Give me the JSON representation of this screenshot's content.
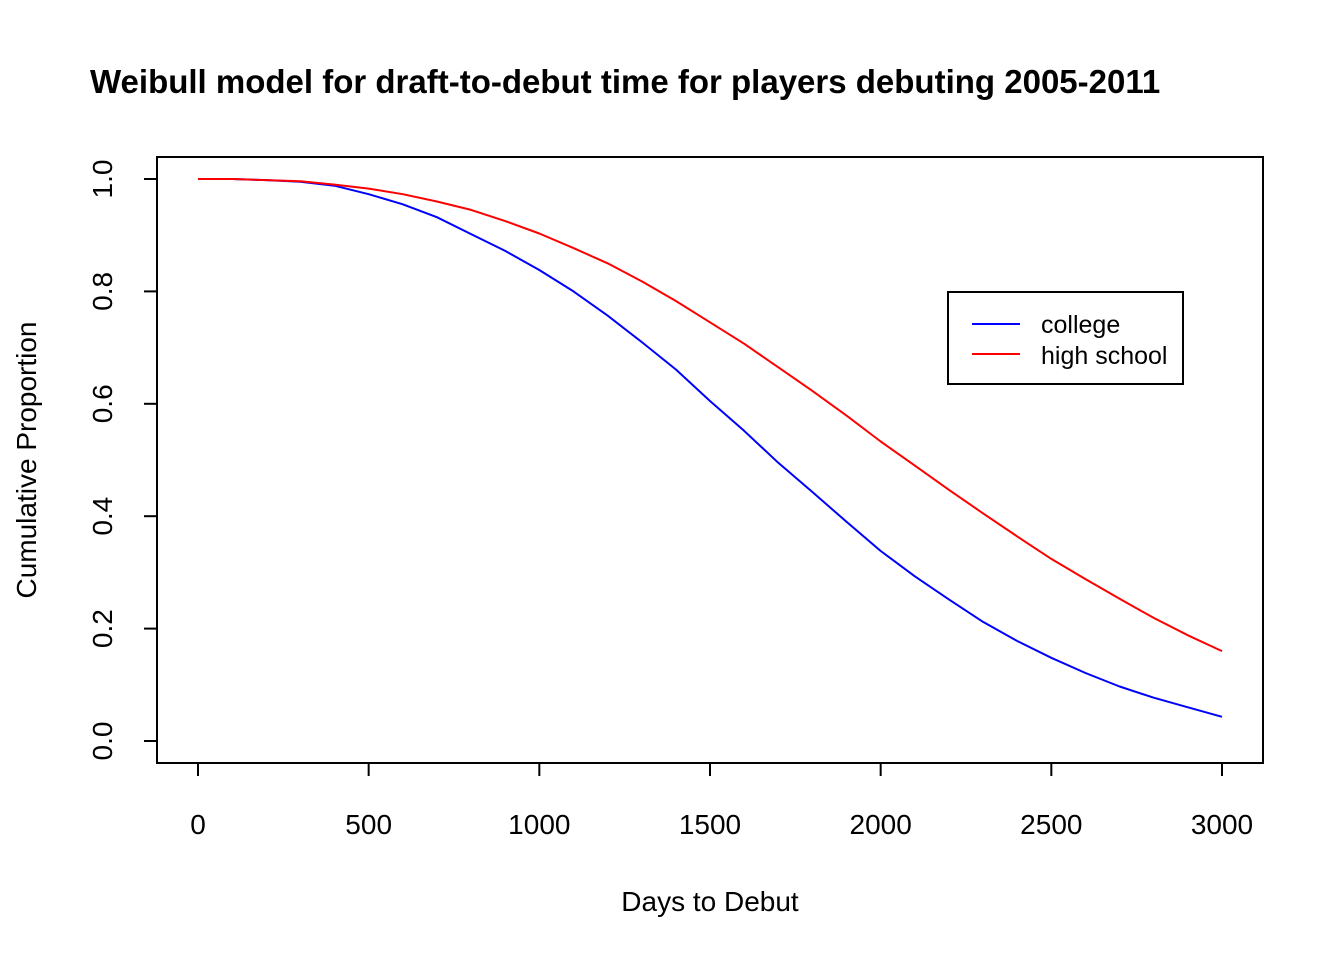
{
  "chart_data": {
    "type": "line",
    "title": "Weibull model for draft-to-debut time for players debuting 2005-2011",
    "xlabel": "Days to Debut",
    "ylabel": "Cumulative Proportion",
    "xlim": [
      0,
      3000
    ],
    "ylim": [
      0,
      1
    ],
    "x_ticks": [
      "0",
      "500",
      "1000",
      "1500",
      "2000",
      "2500",
      "3000"
    ],
    "y_ticks": [
      "0.0",
      "0.2",
      "0.4",
      "0.6",
      "0.8",
      "1.0"
    ],
    "grid": false,
    "legend_position": "top-right",
    "series": [
      {
        "name": "college",
        "color": "#0000ff",
        "points": [
          [
            0,
            1.0
          ],
          [
            100,
            1.0
          ],
          [
            200,
            0.998
          ],
          [
            300,
            0.995
          ],
          [
            400,
            0.988
          ],
          [
            500,
            0.973
          ],
          [
            600,
            0.955
          ],
          [
            700,
            0.932
          ],
          [
            800,
            0.902
          ],
          [
            900,
            0.872
          ],
          [
            1000,
            0.838
          ],
          [
            1100,
            0.8
          ],
          [
            1200,
            0.757
          ],
          [
            1300,
            0.71
          ],
          [
            1400,
            0.661
          ],
          [
            1500,
            0.605
          ],
          [
            1600,
            0.552
          ],
          [
            1700,
            0.495
          ],
          [
            1800,
            0.443
          ],
          [
            1900,
            0.39
          ],
          [
            2000,
            0.338
          ],
          [
            2100,
            0.293
          ],
          [
            2200,
            0.252
          ],
          [
            2300,
            0.212
          ],
          [
            2400,
            0.178
          ],
          [
            2500,
            0.148
          ],
          [
            2600,
            0.121
          ],
          [
            2700,
            0.097
          ],
          [
            2800,
            0.077
          ],
          [
            2900,
            0.06
          ],
          [
            3000,
            0.043
          ]
        ]
      },
      {
        "name": "high school",
        "color": "#ff0000",
        "points": [
          [
            0,
            1.0
          ],
          [
            100,
            1.0
          ],
          [
            200,
            0.998
          ],
          [
            300,
            0.996
          ],
          [
            400,
            0.99
          ],
          [
            500,
            0.983
          ],
          [
            600,
            0.973
          ],
          [
            700,
            0.96
          ],
          [
            800,
            0.945
          ],
          [
            900,
            0.925
          ],
          [
            1000,
            0.903
          ],
          [
            1100,
            0.877
          ],
          [
            1200,
            0.85
          ],
          [
            1300,
            0.818
          ],
          [
            1400,
            0.783
          ],
          [
            1500,
            0.745
          ],
          [
            1600,
            0.707
          ],
          [
            1700,
            0.665
          ],
          [
            1800,
            0.623
          ],
          [
            1900,
            0.579
          ],
          [
            2000,
            0.533
          ],
          [
            2100,
            0.49
          ],
          [
            2200,
            0.447
          ],
          [
            2300,
            0.405
          ],
          [
            2400,
            0.364
          ],
          [
            2500,
            0.324
          ],
          [
            2600,
            0.288
          ],
          [
            2700,
            0.253
          ],
          [
            2800,
            0.219
          ],
          [
            2900,
            0.188
          ],
          [
            3000,
            0.16
          ]
        ]
      }
    ]
  }
}
